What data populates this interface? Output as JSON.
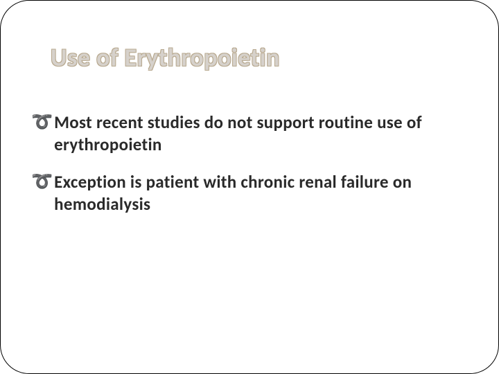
{
  "slide": {
    "title": "Use of Erythropoietin",
    "title_color_fill": "#d6d1cb",
    "title_color_outline": "#b8a98f",
    "title_fontsize": 36,
    "title_fontweight": 700,
    "border_color": "#000000",
    "border_radius": 42,
    "background_color": "#ffffff",
    "bullets": [
      {
        "icon": "",
        "text": "Most recent studies do not support routine use of erythropoietin"
      },
      {
        "icon": "",
        "text": "Exception is patient with chronic renal failure on hemodialysis"
      }
    ],
    "bullet_icon_color": "#c3865a",
    "bullet_text_color": "#2a2a2a",
    "bullet_fontsize": 25,
    "bullet_fontweight": 600,
    "bullet_glyph": "d"
  }
}
